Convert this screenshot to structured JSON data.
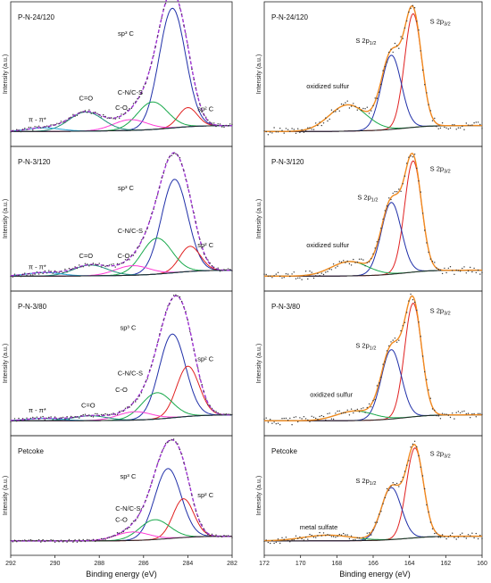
{
  "figure": {
    "left_xlabel": "Binding energy (eV)",
    "right_xlabel": "Binding energy (eV)",
    "ylabel": "Intensity (a.u.)"
  },
  "colors": {
    "envelope": "#9b30d0",
    "data": "#333333",
    "background": "#222222",
    "sp3": "#1f2fa8",
    "sp2": "#e02020",
    "cn_cs": "#17a84a",
    "co": "#ff3ad6",
    "ceqo": "#1f8f7a",
    "pipi": "#1fa3d6",
    "s32": "#e02020",
    "s12": "#1f2fa8",
    "oxs": "#17a84a",
    "spectrum": "#f08a20"
  },
  "chart_data": [
    {
      "type": "line",
      "panel": "C1s",
      "label": "P-N-24/120",
      "xlim": [
        292,
        282
      ],
      "xticks": [
        292,
        290,
        288,
        286,
        284,
        282
      ],
      "components": [
        {
          "name": "sp3 C",
          "center": 284.7,
          "height": 1.0,
          "fwhm": 1.4,
          "color_key": "sp3"
        },
        {
          "name": "sp2 C",
          "center": 284.0,
          "height": 0.16,
          "fwhm": 1.0,
          "color_key": "sp2"
        },
        {
          "name": "C-N/C-S",
          "center": 285.6,
          "height": 0.23,
          "fwhm": 1.6,
          "color_key": "cn_cs"
        },
        {
          "name": "C-O",
          "center": 286.6,
          "height": 0.09,
          "fwhm": 1.8,
          "color_key": "co"
        },
        {
          "name": "C=O",
          "center": 288.6,
          "height": 0.16,
          "fwhm": 1.8,
          "color_key": "ceqo"
        },
        {
          "name": "π→π*",
          "center": 290.5,
          "height": 0.03,
          "fwhm": 1.8,
          "color_key": "pipi"
        }
      ],
      "annotations": [
        {
          "text": "sp³ C",
          "x": 286.8,
          "y": 0.82
        },
        {
          "text": "sp² C",
          "x": 283.2,
          "y": 0.19
        },
        {
          "text": "C-N/C-S",
          "x": 286.6,
          "y": 0.33
        },
        {
          "text": "C-O",
          "x": 287.0,
          "y": 0.2
        },
        {
          "text": "C=O",
          "x": 288.6,
          "y": 0.28
        },
        {
          "text": "π - π*",
          "x": 290.8,
          "y": 0.1
        }
      ]
    },
    {
      "type": "line",
      "panel": "C1s",
      "label": "P-N-3/120",
      "xlim": [
        292,
        282
      ],
      "xticks": [
        292,
        290,
        288,
        286,
        284,
        282
      ],
      "components": [
        {
          "name": "sp3 C",
          "center": 284.6,
          "height": 0.78,
          "fwhm": 1.4,
          "color_key": "sp3"
        },
        {
          "name": "sp2 C",
          "center": 283.9,
          "height": 0.21,
          "fwhm": 1.1,
          "color_key": "sp2"
        },
        {
          "name": "C-N/C-S",
          "center": 285.4,
          "height": 0.3,
          "fwhm": 1.6,
          "color_key": "cn_cs"
        },
        {
          "name": "C-O",
          "center": 286.5,
          "height": 0.08,
          "fwhm": 1.8,
          "color_key": "co"
        },
        {
          "name": "C=O",
          "center": 288.4,
          "height": 0.09,
          "fwhm": 1.8,
          "color_key": "ceqo"
        },
        {
          "name": "π→π*",
          "center": 290.5,
          "height": 0.03,
          "fwhm": 1.8,
          "color_key": "pipi"
        }
      ],
      "annotations": [
        {
          "text": "sp³ C",
          "x": 286.8,
          "y": 0.74
        },
        {
          "text": "sp² C",
          "x": 283.2,
          "y": 0.26
        },
        {
          "text": "C-N/C-S",
          "x": 286.6,
          "y": 0.38
        },
        {
          "text": "C-O",
          "x": 286.9,
          "y": 0.17
        },
        {
          "text": "C=O",
          "x": 288.6,
          "y": 0.17
        },
        {
          "text": "π - π*",
          "x": 290.8,
          "y": 0.08
        }
      ]
    },
    {
      "type": "line",
      "panel": "C1s",
      "label": "P-N-3/80",
      "xlim": [
        292,
        282
      ],
      "xticks": [
        292,
        290,
        288,
        286,
        284,
        282
      ],
      "components": [
        {
          "name": "sp3 C",
          "center": 284.7,
          "height": 0.7,
          "fwhm": 1.4,
          "color_key": "sp3"
        },
        {
          "name": "sp2 C",
          "center": 284.0,
          "height": 0.42,
          "fwhm": 1.2,
          "color_key": "sp2"
        },
        {
          "name": "C-N/C-S",
          "center": 285.4,
          "height": 0.22,
          "fwhm": 1.6,
          "color_key": "cn_cs"
        },
        {
          "name": "C-O",
          "center": 286.4,
          "height": 0.07,
          "fwhm": 1.8,
          "color_key": "co"
        },
        {
          "name": "C=O",
          "center": 288.4,
          "height": 0.04,
          "fwhm": 1.8,
          "color_key": "ceqo"
        },
        {
          "name": "π→π*",
          "center": 290.5,
          "height": 0.02,
          "fwhm": 1.8,
          "color_key": "pipi"
        }
      ],
      "annotations": [
        {
          "text": "sp³ C",
          "x": 286.7,
          "y": 0.78
        },
        {
          "text": "sp² C",
          "x": 283.2,
          "y": 0.52
        },
        {
          "text": "C-N/C-S",
          "x": 286.6,
          "y": 0.4
        },
        {
          "text": "C-O",
          "x": 287.0,
          "y": 0.26
        },
        {
          "text": "C=O",
          "x": 288.5,
          "y": 0.13
        },
        {
          "text": "π - π*",
          "x": 290.8,
          "y": 0.09
        }
      ]
    },
    {
      "type": "line",
      "panel": "C1s",
      "label": "Petcoke",
      "xlim": [
        292,
        282
      ],
      "xticks": [
        292,
        290,
        288,
        286,
        284,
        282
      ],
      "components": [
        {
          "name": "sp3 C",
          "center": 284.9,
          "height": 0.74,
          "fwhm": 1.4,
          "color_key": "sp3"
        },
        {
          "name": "sp2 C",
          "center": 284.2,
          "height": 0.41,
          "fwhm": 1.1,
          "color_key": "sp2"
        },
        {
          "name": "C-N/C-S",
          "center": 285.5,
          "height": 0.21,
          "fwhm": 1.6,
          "color_key": "cn_cs"
        },
        {
          "name": "C-O",
          "center": 286.5,
          "height": 0.09,
          "fwhm": 1.8,
          "color_key": "co"
        }
      ],
      "annotations": [
        {
          "text": "sp³ C",
          "x": 286.7,
          "y": 0.68
        },
        {
          "text": "sp² C",
          "x": 283.2,
          "y": 0.48
        },
        {
          "text": "C-N/C-S",
          "x": 286.7,
          "y": 0.34
        },
        {
          "text": "C-O",
          "x": 287.0,
          "y": 0.22
        }
      ]
    },
    {
      "type": "line",
      "panel": "S2p",
      "label": "P-N-24/120",
      "xlim": [
        172,
        160
      ],
      "xticks": [
        172,
        170,
        168,
        166,
        164,
        162,
        160
      ],
      "components": [
        {
          "name": "S 2p3/2",
          "center": 163.8,
          "height": 0.95,
          "fwhm": 1.1,
          "color_key": "s32"
        },
        {
          "name": "S 2p1/2",
          "center": 165.0,
          "height": 0.62,
          "fwhm": 1.3,
          "color_key": "s12"
        },
        {
          "name": "oxidized sulfur",
          "center": 167.4,
          "height": 0.22,
          "fwhm": 2.4,
          "color_key": "oxs"
        }
      ],
      "annotations": [
        {
          "text": "S 2p3/2",
          "x": 162.3,
          "y": 0.92,
          "sub": "3/2"
        },
        {
          "text": "S 2p1/2",
          "x": 166.4,
          "y": 0.76,
          "sub": "1/2"
        },
        {
          "text": "oxidized sulfur",
          "x": 168.5,
          "y": 0.38
        }
      ]
    },
    {
      "type": "line",
      "panel": "S2p",
      "label": "P-N-3/120",
      "xlim": [
        172,
        160
      ],
      "xticks": [
        172,
        170,
        168,
        166,
        164,
        162,
        160
      ],
      "components": [
        {
          "name": "S 2p3/2",
          "center": 163.8,
          "height": 0.93,
          "fwhm": 1.1,
          "color_key": "s32"
        },
        {
          "name": "S 2p1/2",
          "center": 165.0,
          "height": 0.6,
          "fwhm": 1.3,
          "color_key": "s12"
        },
        {
          "name": "oxidized sulfur",
          "center": 167.3,
          "height": 0.12,
          "fwhm": 2.4,
          "color_key": "oxs"
        }
      ],
      "annotations": [
        {
          "text": "S 2p3/2",
          "x": 162.3,
          "y": 0.9,
          "sub": "3/2"
        },
        {
          "text": "S 2p1/2",
          "x": 166.3,
          "y": 0.66,
          "sub": "1/2"
        },
        {
          "text": "oxidized sulfur",
          "x": 168.5,
          "y": 0.26
        }
      ]
    },
    {
      "type": "line",
      "panel": "S2p",
      "label": "P-N-3/80",
      "xlim": [
        172,
        160
      ],
      "xticks": [
        172,
        170,
        168,
        166,
        164,
        162,
        160
      ],
      "components": [
        {
          "name": "S 2p3/2",
          "center": 163.8,
          "height": 0.95,
          "fwhm": 1.1,
          "color_key": "s32"
        },
        {
          "name": "S 2p1/2",
          "center": 165.0,
          "height": 0.58,
          "fwhm": 1.3,
          "color_key": "s12"
        },
        {
          "name": "oxidized sulfur",
          "center": 167.0,
          "height": 0.08,
          "fwhm": 2.4,
          "color_key": "oxs"
        }
      ],
      "annotations": [
        {
          "text": "S 2p3/2",
          "x": 162.3,
          "y": 0.92,
          "sub": "3/2"
        },
        {
          "text": "S 2p1/2",
          "x": 166.4,
          "y": 0.63,
          "sub": "1/2"
        },
        {
          "text": "oxidized sulfur",
          "x": 168.3,
          "y": 0.22
        }
      ]
    },
    {
      "type": "line",
      "panel": "S2p",
      "label": "Petcoke",
      "xlim": [
        172,
        160
      ],
      "xticks": [
        172,
        170,
        168,
        166,
        164,
        162,
        160
      ],
      "components": [
        {
          "name": "S 2p3/2",
          "center": 163.7,
          "height": 0.95,
          "fwhm": 1.1,
          "color_key": "s32"
        },
        {
          "name": "S 2p1/2",
          "center": 165.0,
          "height": 0.55,
          "fwhm": 1.3,
          "color_key": "s12"
        },
        {
          "name": "metal sulfate",
          "center": 168.5,
          "height": 0.06,
          "fwhm": 3.2,
          "color_key": "oxs"
        }
      ],
      "annotations": [
        {
          "text": "S 2p3/2",
          "x": 162.3,
          "y": 0.92,
          "sub": "3/2"
        },
        {
          "text": "S 2p1/2",
          "x": 166.4,
          "y": 0.63,
          "sub": "1/2"
        },
        {
          "text": "metal sulfate",
          "x": 169.0,
          "y": 0.14
        }
      ]
    }
  ]
}
